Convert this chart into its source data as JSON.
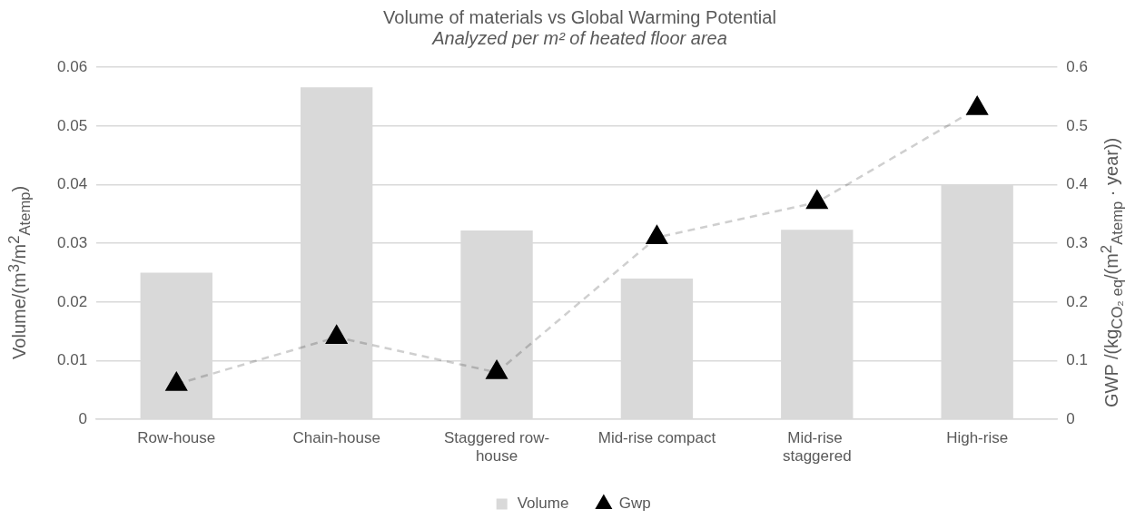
{
  "chart_data": {
    "type": "bar",
    "title": "Volume of materials vs Global Warming Potential",
    "subtitle": "Analyzed per m² of heated floor area",
    "ylabel": "Volume/(m$^{3}$/m$^{2}$$_{Atemp}$)",
    "y2label": "GWP /(kg$_{CO₂ eq}$/(m$^{2}$$_{Atemp}$ · year))",
    "categories": [
      "Row-house",
      "Chain-house",
      "Staggered row-house",
      "Mid-rise compact",
      "Mid-rise staggered",
      "High-rise"
    ],
    "series": [
      {
        "name": "Volume",
        "color": "#d9d9d9",
        "values": [
          0.025,
          0.0566,
          0.0322,
          0.024,
          0.0323,
          0.04
        ]
      },
      {
        "name": "Gwp",
        "type": "line",
        "axis": "y2",
        "color": "#000000",
        "line_style": "dashed",
        "marker": "triangle",
        "values": [
          0.06,
          0.14,
          0.08,
          0.31,
          0.37,
          0.53
        ]
      }
    ],
    "ylim": [
      0,
      0.06
    ],
    "yticks": [
      0,
      0.01,
      0.02,
      0.03,
      0.04,
      0.05,
      0.06
    ],
    "y2lim": [
      0,
      0.6
    ],
    "y2ticks": [
      0,
      0.1,
      0.2,
      0.3,
      0.4,
      0.5,
      0.6
    ],
    "grid": "y",
    "legend": "bottom"
  }
}
